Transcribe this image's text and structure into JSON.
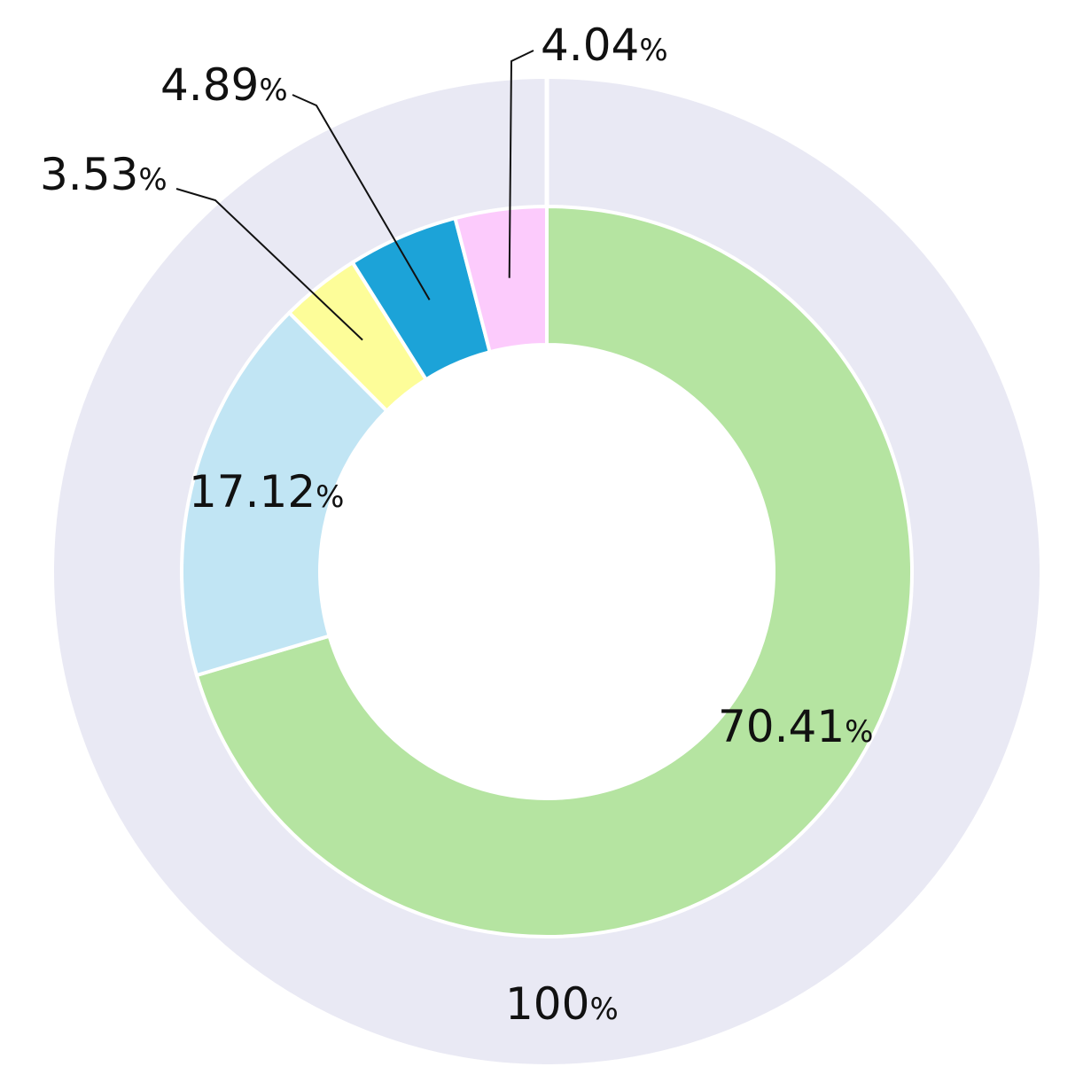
{
  "chart_data": {
    "type": "pie",
    "subtype": "nested-donut",
    "outer_ring": {
      "value": 100,
      "label": "100",
      "unit": "%",
      "color": "#e9e9f4"
    },
    "inner_ring": {
      "slices": [
        {
          "value": 70.41,
          "label": "70.41",
          "unit": "%",
          "color": "#b5e4a1"
        },
        {
          "value": 17.12,
          "label": "17.12",
          "unit": "%",
          "color": "#c1e5f4"
        },
        {
          "value": 3.53,
          "label": "3.53",
          "unit": "%",
          "color": "#fdfd99"
        },
        {
          "value": 4.89,
          "label": "4.89",
          "unit": "%",
          "color": "#1ca3d8"
        },
        {
          "value": 4.04,
          "label": "4.04",
          "unit": "%",
          "color": "#fccbfc"
        }
      ],
      "start": "top",
      "direction": "clockwise"
    },
    "separator_color": "#ffffff",
    "leader_line_color": "#111111"
  }
}
